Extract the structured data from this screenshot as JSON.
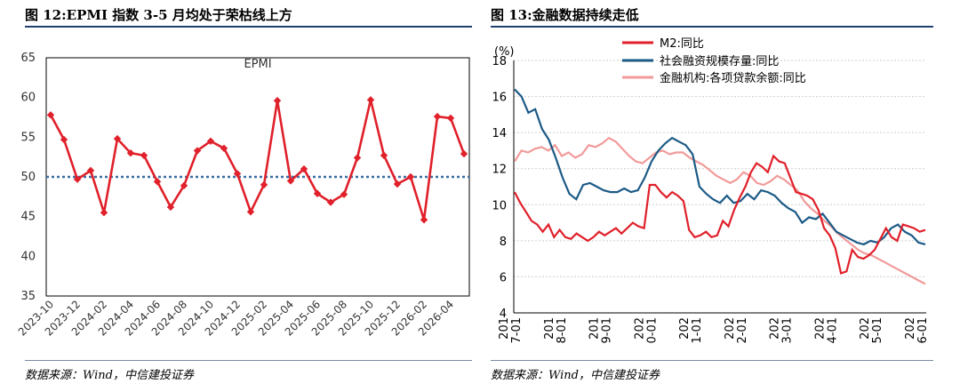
{
  "left_panel": {
    "title": "图 12:EPMI 指数 3-5 月均处于荣枯线上方",
    "source": "数据来源：Wind，中信建投证券"
  },
  "right_panel": {
    "title": "图 13:金融数据持续走低",
    "source": "数据来源：Wind，中信建投证券"
  },
  "colors": {
    "epmi_line": "#e0202a",
    "ref_line": "#3a6ea5",
    "m2": "#e0202a",
    "tsf": "#1b5a86",
    "loans": "#f29a9a",
    "rule": "#1f3f6e"
  },
  "chart_data": [
    {
      "type": "line",
      "title": "",
      "series_label": "EPMI",
      "y_ticks": [
        "65",
        "60",
        "55",
        "50",
        "45",
        "40",
        "35"
      ],
      "ylim": [
        35,
        65
      ],
      "grid": false,
      "reference_line": 50,
      "x_tick_labels": [
        "2023-10",
        "2023-12",
        "2024-02",
        "2024-04",
        "2024-06",
        "2024-08",
        "2024-10",
        "2024-12",
        "2025-02",
        "2025-04",
        "2025-06",
        "2025-08",
        "2025-10",
        "2025-12",
        "2026-02",
        "2026-04"
      ],
      "values": [
        57.8,
        54.7,
        49.7,
        50.8,
        45.5,
        54.8,
        53.0,
        52.7,
        49.4,
        46.2,
        48.9,
        53.3,
        54.5,
        53.6,
        50.4,
        45.6,
        49.0,
        59.6,
        49.5,
        51.0,
        47.9,
        46.8,
        47.8,
        52.4,
        59.7,
        52.7,
        49.1,
        50.0,
        44.6,
        57.6,
        57.4,
        52.9
      ]
    },
    {
      "type": "line",
      "y_unit": "(%)",
      "y_ticks": [
        "18",
        "16",
        "14",
        "12",
        "10",
        "8",
        "6",
        "4"
      ],
      "ylim": [
        4,
        18
      ],
      "grid": true,
      "legend_placement": "top-left",
      "x_tick_labels": [
        [
          "201",
          "7-01"
        ],
        [
          "201",
          "8-01"
        ],
        [
          "201",
          "9-01"
        ],
        [
          "202",
          "0-01"
        ],
        [
          "202",
          "1-01"
        ],
        [
          "202",
          "2-01"
        ],
        [
          "202",
          "3-01"
        ],
        [
          "202",
          "4-01"
        ],
        [
          "202",
          "5-01"
        ],
        [
          "202",
          "6-01"
        ]
      ],
      "series": [
        {
          "name": "M2:同比",
          "values": [
            10.7,
            10.1,
            9.6,
            9.1,
            8.9,
            8.5,
            8.9,
            8.2,
            8.6,
            8.2,
            8.1,
            8.4,
            8.2,
            8.0,
            8.2,
            8.5,
            8.3,
            8.5,
            8.7,
            8.4,
            8.7,
            9.0,
            8.8,
            8.7,
            11.1,
            11.1,
            10.7,
            10.4,
            10.7,
            10.5,
            10.2,
            8.6,
            8.2,
            8.3,
            8.5,
            8.2,
            8.3,
            9.1,
            8.8,
            9.7,
            10.4,
            11.0,
            11.8,
            12.3,
            12.1,
            11.8,
            12.7,
            12.4,
            12.3,
            11.5,
            10.7,
            10.6,
            10.5,
            10.3,
            9.7,
            8.7,
            8.3,
            7.6,
            6.2,
            6.3,
            7.5,
            7.1,
            7.0,
            7.2,
            7.5,
            8.1,
            8.7,
            8.2,
            8.0,
            8.9,
            8.8,
            8.7,
            8.5,
            8.6
          ]
        },
        {
          "name": "社会融资规模存量:同比",
          "values": [
            16.4,
            16.0,
            15.1,
            15.3,
            14.2,
            13.6,
            12.6,
            11.5,
            10.6,
            10.3,
            11.1,
            11.2,
            11.0,
            10.8,
            10.7,
            10.7,
            10.9,
            10.7,
            10.8,
            11.5,
            12.4,
            13.0,
            13.4,
            13.7,
            13.5,
            13.3,
            12.8,
            11.0,
            10.6,
            10.3,
            10.1,
            10.5,
            10.1,
            10.2,
            10.6,
            10.3,
            10.8,
            10.7,
            10.5,
            10.1,
            9.8,
            9.6,
            9.0,
            9.3,
            9.2,
            9.5,
            9.0,
            8.5,
            8.3,
            8.1,
            7.9,
            7.8,
            8.0,
            7.9,
            8.2,
            8.7,
            8.9,
            8.5,
            8.3,
            7.9,
            7.8
          ]
        },
        {
          "name": "金融机构:各项贷款余额:同比",
          "values": [
            12.4,
            13.0,
            12.9,
            13.1,
            13.2,
            13.0,
            13.3,
            12.7,
            12.9,
            12.6,
            12.8,
            13.3,
            13.2,
            13.4,
            13.7,
            13.5,
            13.1,
            12.7,
            12.4,
            12.3,
            12.6,
            12.9,
            13.0,
            12.8,
            12.9,
            12.9,
            12.6,
            12.4,
            12.2,
            11.9,
            11.6,
            11.4,
            11.2,
            11.4,
            11.8,
            11.6,
            11.2,
            11.1,
            11.3,
            11.6,
            11.4,
            11.1,
            10.8,
            10.2,
            9.8,
            9.5,
            9.1,
            8.8,
            8.4,
            8.1,
            7.8,
            7.5,
            7.3,
            7.2,
            7.0,
            6.8,
            6.6,
            6.4,
            6.2,
            6.0,
            5.8,
            5.6
          ]
        }
      ]
    }
  ]
}
